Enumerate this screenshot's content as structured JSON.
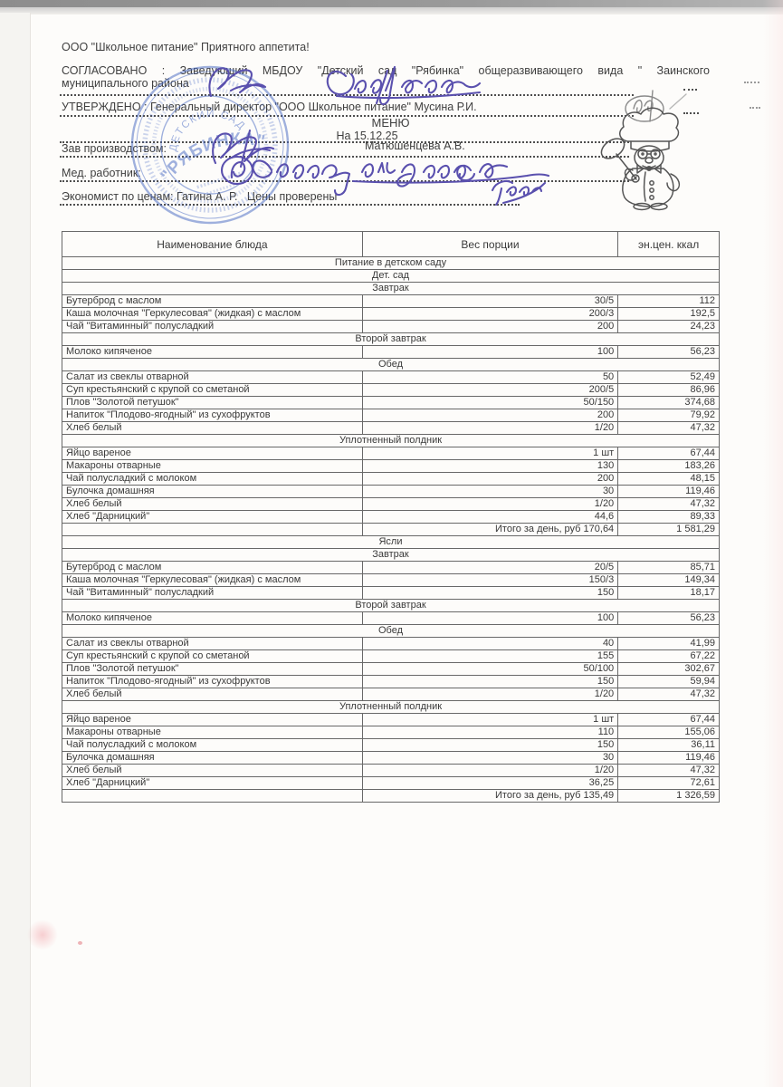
{
  "header": {
    "org_line": "ООО \"Школьное питание\" Приятного аппетита!",
    "agreed_line1": "СОГЛАСОВАНО  :  Заведующий  МБДОУ  \"Детский  сад  \"Рябинка\"  общеразвивающего  вида  \"  Заинского",
    "agreed_line2": "муниципального района",
    "approved_line": "УТВЕРЖДЕНО : Генеральный директор \"ООО Школьное питание\" Мусина Р.И.",
    "menu_title": "МЕНЮ",
    "menu_date": "На 15.12.25",
    "zav_label": "Зав производством:",
    "zav_name": "Матюшенцева А.В.",
    "med_label": "Мед. работник:",
    "econ_line": "Экономист по ценам: Гатина А. Р.   Цены проверены"
  },
  "stamp": {
    "arc_text": "ДЕТСКИЙ САД",
    "name": "\"РЯБИНКА\""
  },
  "graphics": {
    "stamp": "round-blue-kindergarten-stamp",
    "chef": "chef-mascot-sketch",
    "signatures": [
      "head-signature",
      "director-initials-signature",
      "production-manager-signature",
      "med-worker-signature",
      "economist-signature"
    ]
  },
  "colors": {
    "ink_signature": "#5a50ae",
    "stamp_blue": "#4b6cc4",
    "text": "#3f3f3f",
    "table_border": "#686868"
  },
  "table": {
    "headers": [
      "Наименование блюда",
      "Вес порции",
      "эн.цен. ккал"
    ],
    "rows": [
      {
        "type": "section",
        "text": "Питание в детском саду"
      },
      {
        "type": "section",
        "text": "Дет. сад"
      },
      {
        "type": "section",
        "text": "Завтрак"
      },
      {
        "type": "item",
        "name": "Бутерброд с маслом",
        "weight": "30/5",
        "kcal": "112"
      },
      {
        "type": "item",
        "name": "Каша молочная \"Геркулесовая\" (жидкая) с маслом",
        "weight": "200/3",
        "kcal": "192,5"
      },
      {
        "type": "item",
        "name": "Чай \"Витаминный\" полусладкий",
        "weight": "200",
        "kcal": "24,23"
      },
      {
        "type": "section",
        "text": "Второй завтрак"
      },
      {
        "type": "item",
        "name": "Молоко кипяченое",
        "weight": "100",
        "kcal": "56,23"
      },
      {
        "type": "section",
        "text": "Обед"
      },
      {
        "type": "item",
        "name": "Салат из свеклы отварной",
        "weight": "50",
        "kcal": "52,49"
      },
      {
        "type": "item",
        "name": "Суп крестьянский с крупой со сметаной",
        "weight": "200/5",
        "kcal": "86,96"
      },
      {
        "type": "item",
        "name": "Плов \"Золотой петушок\"",
        "weight": "50/150",
        "kcal": "374,68"
      },
      {
        "type": "item",
        "name": "Напиток \"Плодово-ягодный\" из сухофруктов",
        "weight": "200",
        "kcal": "79,92"
      },
      {
        "type": "item",
        "name": "Хлеб белый",
        "weight": "1/20",
        "kcal": "47,32"
      },
      {
        "type": "section",
        "text": "Уплотненный полдник"
      },
      {
        "type": "item",
        "name": "Яйцо вареное",
        "weight": "1 шт",
        "kcal": "67,44"
      },
      {
        "type": "item",
        "name": "Макароны отварные",
        "weight": "130",
        "kcal": "183,26"
      },
      {
        "type": "item",
        "name": "Чай полусладкий с молоком",
        "weight": "200",
        "kcal": "48,15"
      },
      {
        "type": "item",
        "name": "Булочка домашняя",
        "weight": "30",
        "kcal": "119,46"
      },
      {
        "type": "item",
        "name": "Хлеб белый",
        "weight": "1/20",
        "kcal": "47,32"
      },
      {
        "type": "item",
        "name": "Хлеб \"Дарницкий\"",
        "weight": "44,6",
        "kcal": "89,33"
      },
      {
        "type": "total",
        "label": "Итого за день, руб 170,64",
        "kcal": "1 581,29"
      },
      {
        "type": "section",
        "text": "Ясли"
      },
      {
        "type": "section",
        "text": "Завтрак"
      },
      {
        "type": "item",
        "name": "Бутерброд с маслом",
        "weight": "20/5",
        "kcal": "85,71"
      },
      {
        "type": "item",
        "name": "Каша молочная \"Геркулесовая\" (жидкая) с маслом",
        "weight": "150/3",
        "kcal": "149,34"
      },
      {
        "type": "item",
        "name": "Чай \"Витаминный\" полусладкий",
        "weight": "150",
        "kcal": "18,17"
      },
      {
        "type": "section",
        "text": "Второй завтрак"
      },
      {
        "type": "item",
        "name": "Молоко кипяченое",
        "weight": "100",
        "kcal": "56,23"
      },
      {
        "type": "section",
        "text": "Обед"
      },
      {
        "type": "item",
        "name": "Салат из свеклы отварной",
        "weight": "40",
        "kcal": "41,99"
      },
      {
        "type": "item",
        "name": "Суп крестьянский с крупой со сметаной",
        "weight": "155",
        "kcal": "67,22"
      },
      {
        "type": "item",
        "name": "Плов \"Золотой петушок\"",
        "weight": "50/100",
        "kcal": "302,67"
      },
      {
        "type": "item",
        "name": "Напиток \"Плодово-ягодный\" из сухофруктов",
        "weight": "150",
        "kcal": "59,94"
      },
      {
        "type": "item",
        "name": "Хлеб белый",
        "weight": "1/20",
        "kcal": "47,32"
      },
      {
        "type": "section",
        "text": "Уплотненный полдник"
      },
      {
        "type": "item",
        "name": "Яйцо вареное",
        "weight": "1 шт",
        "kcal": "67,44"
      },
      {
        "type": "item",
        "name": "Макароны отварные",
        "weight": "110",
        "kcal": "155,06"
      },
      {
        "type": "item",
        "name": "Чай полусладкий с молоком",
        "weight": "150",
        "kcal": "36,11"
      },
      {
        "type": "item",
        "name": "Булочка домашняя",
        "weight": "30",
        "kcal": "119,46"
      },
      {
        "type": "item",
        "name": "Хлеб белый",
        "weight": "1/20",
        "kcal": "47,32"
      },
      {
        "type": "item",
        "name": "Хлеб \"Дарницкий\"",
        "weight": "36,25",
        "kcal": "72,61"
      },
      {
        "type": "total",
        "label": "Итого за день, руб 135,49",
        "kcal": "1 326,59"
      }
    ]
  }
}
